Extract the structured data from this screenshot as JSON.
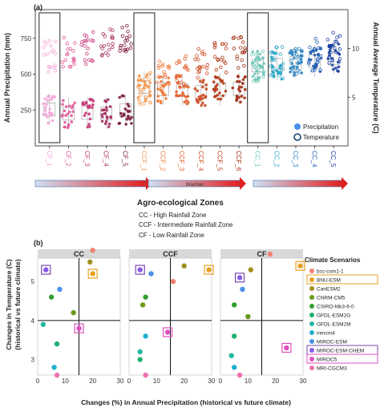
{
  "figure": {
    "panel_a_label": "(a)",
    "panel_b_label": "(b)"
  },
  "chart_data": [
    {
      "type": "scatter",
      "panel": "(a)",
      "ylabel": "Annual Precipitation (mm)",
      "y2label": "Annual Average Temperature (C)",
      "yticks": [
        "250",
        "500",
        "750"
      ],
      "y2ticks": [
        "5",
        "10"
      ],
      "ylim": [
        0,
        950
      ],
      "y2lim": [
        0,
        14
      ],
      "categories": [
        "CF_1",
        "CF_2",
        "CF_3",
        "CF_4",
        "CF_5",
        "CCF_1",
        "CCF_2",
        "CCF_3",
        "CCF_4",
        "CCF_5",
        "CCF_6",
        "CC_1",
        "CC_2",
        "CC_3",
        "CC_4",
        "CC_5"
      ],
      "category_colors": [
        "#f4a6d8",
        "#e05a9a",
        "#c63a7a",
        "#a53062",
        "#7c1c3c",
        "#f59a52",
        "#ef7a3c",
        "#e3602c",
        "#c94a20",
        "#b33a18",
        "#a02e14",
        "#6cc7b8",
        "#32a8c9",
        "#2b85c4",
        "#2561b4",
        "#1c3fa0"
      ],
      "precip_median": [
        255,
        225,
        230,
        225,
        250,
        410,
        395,
        390,
        375,
        395,
        400,
        560,
        565,
        580,
        590,
        610
      ],
      "temp_median": [
        9.2,
        9.6,
        10.0,
        10.4,
        10.8,
        5.8,
        7.1,
        7.7,
        8.4,
        9.0,
        9.6,
        8.2,
        8.5,
        8.9,
        9.4,
        10.1
      ],
      "legend": [
        "Precipitation",
        "Temperature"
      ],
      "legend_position": "bottom-right",
      "axis_note": "Warmer",
      "zone_title": "Agro-ecological Zones",
      "zones": [
        "CC - High Rainfall Zone",
        "CCF - Intermediate Rainfall Zone",
        "CF - Low Rainfall Zone"
      ]
    },
    {
      "type": "scatter",
      "panel": "(b)",
      "facets": [
        "CC",
        "CCF",
        "CF"
      ],
      "xlabel": "Changes (%) in Annual Precipitation (historical vs future climate)",
      "ylabel": "Changes  in Temperature (C)\n(historical vs future climate)",
      "xticks": [
        "0",
        "10",
        "20",
        "30"
      ],
      "yticks": [
        "3",
        "4",
        "5"
      ],
      "xlim": [
        0,
        30
      ],
      "ylim": [
        2.6,
        5.6
      ],
      "reference_lines": {
        "x": 15,
        "y": 4
      },
      "legend_title": "Climate Scenarios",
      "series": [
        {
          "name": "bcc-csm1-1",
          "color": "#f08070",
          "points": [
            [
              20,
              5.8
            ],
            [
              16,
              5.0
            ],
            [
              18,
              5.7
            ]
          ]
        },
        {
          "name": "BNU-ESM",
          "color": "#e8a020",
          "points": [
            [
              20,
              5.2
            ],
            [
              29,
              5.3
            ],
            [
              29,
              5.4
            ]
          ]
        },
        {
          "name": "CanESM2",
          "color": "#a09020",
          "points": [
            [
              19,
              5.5
            ],
            [
              20,
              5.4
            ],
            [
              11,
              5.3
            ]
          ]
        },
        {
          "name": "CNRM-CM5",
          "color": "#6a9a18",
          "points": [
            [
              13,
              4.2
            ],
            [
              5,
              4.4
            ],
            [
              10,
              4.1
            ]
          ]
        },
        {
          "name": "CSIRO-Mk3-6-0",
          "color": "#30a030",
          "points": [
            [
              5,
              4.6
            ],
            [
              6,
              4.6
            ],
            [
              5,
              4.4
            ]
          ]
        },
        {
          "name": "GFDL-ESM2G",
          "color": "#20b070",
          "points": [
            [
              7,
              3.4
            ],
            [
              4,
              3.0
            ],
            [
              5,
              3.6
            ]
          ]
        },
        {
          "name": "GFDL-ESM2M",
          "color": "#20b8a0",
          "points": [
            [
              2,
              3.9
            ],
            [
              4,
              3.2
            ],
            [
              4,
              3.1
            ]
          ]
        },
        {
          "name": "inmcm4",
          "color": "#20b0d0",
          "points": [
            [
              6,
              2.8
            ],
            [
              6,
              3.6
            ],
            [
              5,
              2.8
            ]
          ]
        },
        {
          "name": "MIROC-ESM",
          "color": "#4a90e8",
          "points": [
            [
              8,
              4.8
            ],
            [
              8,
              5.2
            ],
            [
              8,
              4.8
            ]
          ]
        },
        {
          "name": "MIROC-ESM-CHEM",
          "color": "#8a5ae8",
          "points": [
            [
              3,
              5.3
            ],
            [
              4,
              5.3
            ],
            [
              7,
              5.1
            ]
          ]
        },
        {
          "name": "MIROC5",
          "color": "#e050c0",
          "points": [
            [
              15,
              3.8
            ],
            [
              14,
              3.7
            ],
            [
              24,
              3.3
            ]
          ]
        },
        {
          "name": "MRI-CGCM3",
          "color": "#f070b0",
          "points": [
            [
              7,
              2.6
            ],
            [
              6,
              2.6
            ],
            [
              7,
              2.6
            ]
          ]
        }
      ],
      "highlighted": [
        "BNU-ESM",
        "MIROC-ESM-CHEM",
        "MIROC5"
      ]
    }
  ]
}
